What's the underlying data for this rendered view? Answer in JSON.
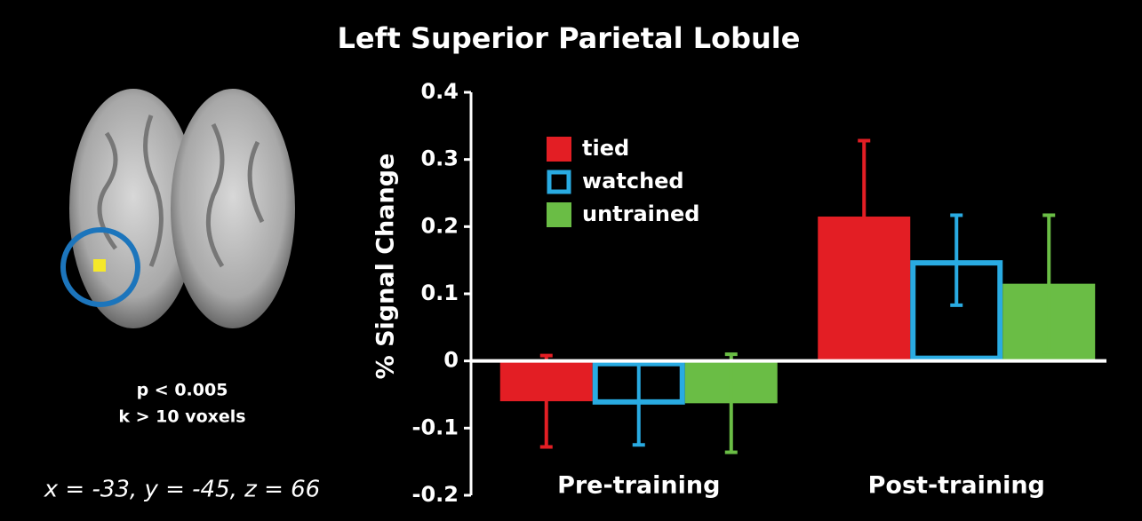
{
  "chart_data": {
    "type": "bar",
    "title": "Left Superior Parietal Lobule",
    "ylabel": "% Signal Change",
    "categories": [
      "Pre-training",
      "Post-training"
    ],
    "series": [
      {
        "name": "tied",
        "color": "#e31e24",
        "style": "filled",
        "values": [
          -0.06,
          0.215
        ],
        "errors": [
          0.068,
          0.113
        ]
      },
      {
        "name": "watched",
        "color": "#29abe2",
        "style": "outline",
        "values": [
          -0.065,
          0.15
        ],
        "errors": [
          0.06,
          0.067
        ]
      },
      {
        "name": "untrained",
        "color": "#6abd45",
        "style": "filled",
        "values": [
          -0.063,
          0.115
        ],
        "errors": [
          0.073,
          0.102
        ]
      }
    ],
    "ylim": [
      -0.2,
      0.4
    ],
    "yticks": [
      -0.2,
      -0.1,
      0,
      0.1,
      0.2,
      0.3,
      0.4
    ],
    "legend": "upper left",
    "annotations": [
      "p < 0.005",
      "k > 10 voxels",
      "x = -33, y = -45, z = 66"
    ]
  }
}
